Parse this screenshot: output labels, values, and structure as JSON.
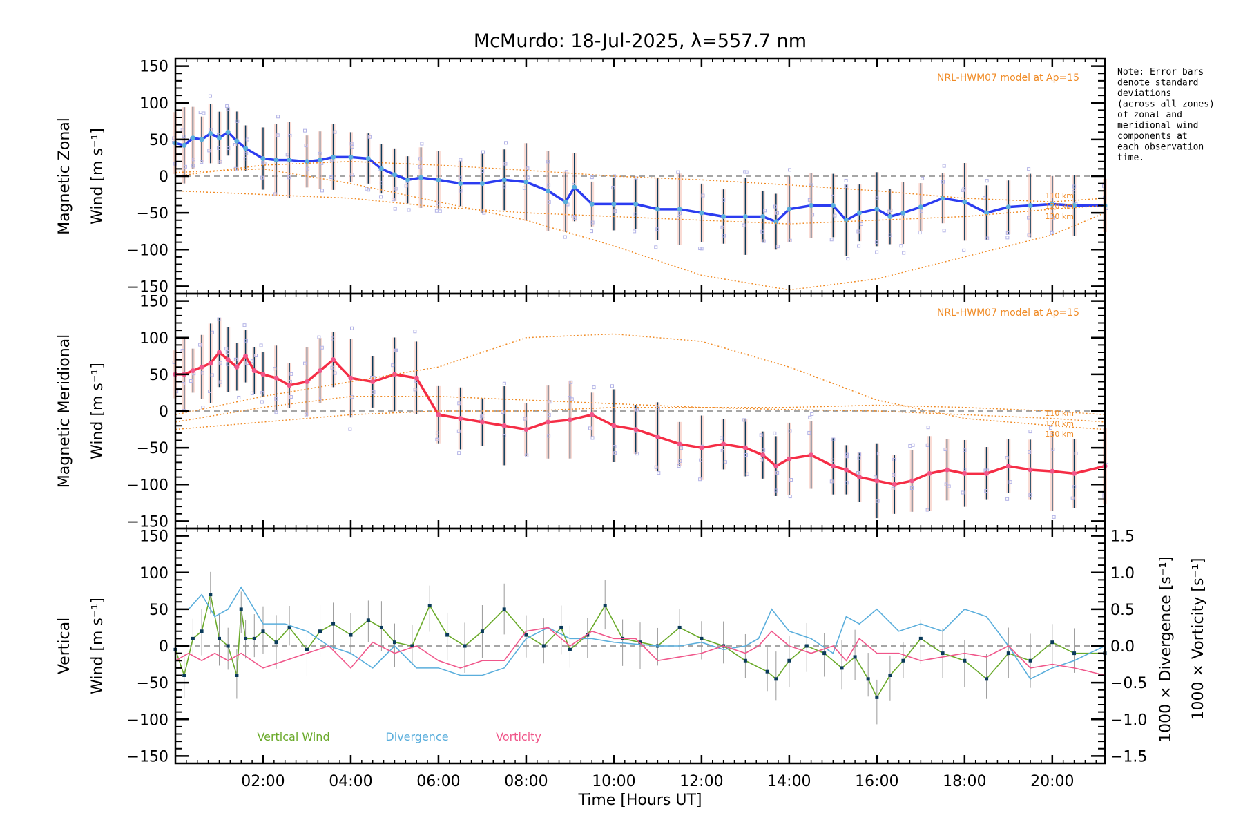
{
  "chart_data": {
    "type": "line",
    "title": "McMurdo: 18-Jul-2025, λ=557.7 nm",
    "xlabel": "Time [Hours UT]",
    "x_ticks": [
      "02:00",
      "04:00",
      "06:00",
      "08:00",
      "10:00",
      "12:00",
      "14:00",
      "16:00",
      "18:00",
      "20:00"
    ],
    "x_tick_hours": [
      2,
      4,
      6,
      8,
      10,
      12,
      14,
      16,
      18,
      20
    ],
    "xlim_hours": [
      0,
      21.2
    ],
    "note": [
      "Note: Error bars",
      "denote standard",
      "deviations",
      "(across all zones)",
      "of zonal and",
      "meridional wind",
      "components at",
      "each observation",
      "time."
    ],
    "panels": [
      {
        "name": "zonal",
        "ylabel_line1": "Magnetic Zonal",
        "ylabel_line2": "Wind [m s⁻¹]",
        "ylim": [
          -160,
          160
        ],
        "y_ticks": [
          150,
          100,
          50,
          0,
          -50,
          -100,
          -150
        ],
        "model_label": "NRL-HWM07 model at Ap=15",
        "altitude_labels": [
          "110 km",
          "120 km",
          "130 km"
        ],
        "series": [
          {
            "name": "Zonal wind (mean)",
            "color": "#2b3cf0",
            "x": [
              0.0,
              0.2,
              0.4,
              0.6,
              0.8,
              1.0,
              1.2,
              1.4,
              1.6,
              2.0,
              2.3,
              2.6,
              3.0,
              3.3,
              3.6,
              4.0,
              4.4,
              4.7,
              5.0,
              5.3,
              5.6,
              6.0,
              6.5,
              7.0,
              7.5,
              8.0,
              8.5,
              8.9,
              9.1,
              9.5,
              10.0,
              10.5,
              11.0,
              11.5,
              12.0,
              12.5,
              13.0,
              13.4,
              13.7,
              14.0,
              14.5,
              15.0,
              15.3,
              15.6,
              16.0,
              16.3,
              16.6,
              17.0,
              17.5,
              18.0,
              18.5,
              19.0,
              19.5,
              20.0,
              20.5,
              21.2
            ],
            "y": [
              45,
              42,
              52,
              50,
              58,
              52,
              60,
              48,
              38,
              24,
              22,
              22,
              20,
              22,
              26,
              26,
              24,
              10,
              2,
              -5,
              -2,
              -5,
              -10,
              -10,
              -5,
              -8,
              -20,
              -35,
              -15,
              -38,
              -38,
              -38,
              -45,
              -45,
              -50,
              -55,
              -55,
              -55,
              -62,
              -45,
              -40,
              -40,
              -60,
              -50,
              -45,
              -55,
              -50,
              -42,
              -30,
              -35,
              -50,
              -42,
              -40,
              -38,
              -40,
              -40
            ]
          },
          {
            "name": "HWM07 110 km",
            "color": "#f08a24",
            "style": "dotted",
            "x": [
              0,
              2,
              4,
              6,
              8,
              10,
              12,
              14,
              16,
              18,
              20,
              21.2
            ],
            "y": [
              0,
              15,
              20,
              15,
              8,
              0,
              -5,
              -12,
              -20,
              -30,
              -35,
              -30
            ]
          },
          {
            "name": "HWM07 120 km",
            "color": "#f08a24",
            "style": "dotted",
            "x": [
              0,
              2,
              4,
              6,
              8,
              10,
              12,
              14,
              16,
              18,
              20,
              21.2
            ],
            "y": [
              -20,
              -25,
              -30,
              -42,
              -50,
              -55,
              -60,
              -65,
              -60,
              -55,
              -45,
              -40
            ]
          },
          {
            "name": "HWM07 130 km",
            "color": "#f08a24",
            "style": "dotted",
            "x": [
              0,
              2,
              4,
              6,
              8,
              10,
              12,
              14,
              16,
              18,
              20,
              21.2
            ],
            "y": [
              5,
              10,
              -10,
              -35,
              -60,
              -95,
              -135,
              -155,
              -140,
              -110,
              -80,
              -50
            ]
          }
        ]
      },
      {
        "name": "meridional",
        "ylabel_line1": "Magnetic Meridional",
        "ylabel_line2": "Wind [m s⁻¹]",
        "ylim": [
          -160,
          160
        ],
        "y_ticks": [
          150,
          100,
          50,
          0,
          -50,
          -100,
          -150
        ],
        "model_label": "NRL-HWM07 model at Ap=15",
        "altitude_labels": [
          "110 km",
          "120 km",
          "130 km"
        ],
        "series": [
          {
            "name": "Meridional wind (mean)",
            "color": "#f52d45",
            "x": [
              0.0,
              0.2,
              0.4,
              0.6,
              0.8,
              1.0,
              1.2,
              1.4,
              1.6,
              1.8,
              2.0,
              2.3,
              2.6,
              3.0,
              3.3,
              3.6,
              4.0,
              4.5,
              5.0,
              5.5,
              6.0,
              6.5,
              7.0,
              7.5,
              8.0,
              8.5,
              9.0,
              9.5,
              10.0,
              10.5,
              11.0,
              11.5,
              12.0,
              12.5,
              13.0,
              13.4,
              13.7,
              14.0,
              14.5,
              15.0,
              15.3,
              15.6,
              16.0,
              16.4,
              16.8,
              17.2,
              17.6,
              18.0,
              18.5,
              19.0,
              19.5,
              20.0,
              20.5,
              21.2
            ],
            "y": [
              50,
              50,
              55,
              60,
              65,
              80,
              70,
              60,
              75,
              55,
              50,
              45,
              35,
              40,
              55,
              70,
              45,
              40,
              50,
              45,
              -5,
              -10,
              -15,
              -20,
              -25,
              -15,
              -12,
              -5,
              -20,
              -25,
              -35,
              -45,
              -50,
              -45,
              -50,
              -60,
              -75,
              -65,
              -60,
              -75,
              -80,
              -90,
              -95,
              -100,
              -95,
              -85,
              -80,
              -85,
              -85,
              -75,
              -80,
              -82,
              -85,
              -75
            ]
          },
          {
            "name": "HWM07 110 km",
            "color": "#f08a24",
            "style": "dotted",
            "x": [
              0,
              2,
              4,
              6,
              8,
              10,
              12,
              14,
              16,
              18,
              20,
              21.2
            ],
            "y": [
              -5,
              20,
              40,
              60,
              100,
              105,
              95,
              60,
              15,
              -10,
              -20,
              -25
            ]
          },
          {
            "name": "HWM07 120 km",
            "color": "#f08a24",
            "style": "dotted",
            "x": [
              0,
              2,
              4,
              6,
              8,
              10,
              12,
              14,
              16,
              18,
              20,
              21.2
            ],
            "y": [
              -15,
              5,
              20,
              20,
              15,
              10,
              5,
              2,
              0,
              -5,
              -10,
              -15
            ]
          },
          {
            "name": "HWM07 130 km",
            "color": "#f08a24",
            "style": "dotted",
            "x": [
              0,
              2,
              4,
              6,
              8,
              10,
              12,
              14,
              16,
              18,
              20,
              21.2
            ],
            "y": [
              -25,
              -15,
              -5,
              0,
              0,
              5,
              5,
              5,
              8,
              5,
              0,
              -5
            ]
          }
        ]
      },
      {
        "name": "vertical",
        "ylabel_line1": "Vertical",
        "ylabel_line2": "Wind [m s⁻¹]",
        "ylabel_color": "#6aaa2a",
        "ylim": [
          -160,
          160
        ],
        "y_ticks": [
          150,
          100,
          50,
          0,
          -50,
          -100,
          -150
        ],
        "right_ylim": [
          -1.6,
          1.6
        ],
        "right_y_ticks": [
          "1.5",
          "1.0",
          "0.5",
          "0.0",
          "−0.5",
          "−1.0",
          "−1.5"
        ],
        "right_y_tick_values": [
          1.5,
          1.0,
          0.5,
          0.0,
          -0.5,
          -1.0,
          -1.5
        ],
        "right_ylabel_div": "1000 × Divergence [s⁻¹]",
        "right_ylabel_vor": "1000 × Vorticity [s⁻¹]",
        "legend": [
          {
            "label": "Vertical Wind",
            "color": "#6aaa2a"
          },
          {
            "label": "Divergence",
            "color": "#5aaedc"
          },
          {
            "label": "Vorticity",
            "color": "#f0568a"
          }
        ],
        "series": [
          {
            "name": "Vertical Wind",
            "color": "#6aaa2a",
            "axis": "left",
            "x": [
              0.0,
              0.2,
              0.4,
              0.6,
              0.8,
              1.0,
              1.2,
              1.4,
              1.5,
              1.6,
              1.8,
              2.0,
              2.3,
              2.6,
              3.0,
              3.3,
              3.6,
              4.0,
              4.4,
              4.7,
              5.0,
              5.4,
              5.8,
              6.2,
              6.6,
              7.0,
              7.5,
              8.0,
              8.4,
              8.8,
              9.0,
              9.4,
              9.8,
              10.2,
              10.6,
              11.0,
              11.5,
              12.0,
              12.5,
              13.0,
              13.5,
              13.7,
              14.0,
              14.4,
              14.8,
              15.2,
              15.5,
              15.8,
              16.0,
              16.3,
              16.6,
              17.0,
              17.5,
              18.0,
              18.5,
              19.0,
              19.5,
              20.0,
              20.5,
              21.2
            ],
            "y": [
              -5,
              -40,
              10,
              20,
              70,
              10,
              0,
              -40,
              50,
              10,
              10,
              20,
              5,
              25,
              -5,
              20,
              30,
              15,
              35,
              25,
              5,
              0,
              55,
              15,
              0,
              20,
              50,
              15,
              0,
              25,
              -5,
              15,
              55,
              10,
              5,
              0,
              25,
              10,
              0,
              -20,
              -35,
              -45,
              -20,
              0,
              -10,
              -30,
              -15,
              -45,
              -70,
              -40,
              -20,
              10,
              -10,
              -20,
              -45,
              -10,
              -20,
              5,
              -10,
              -10
            ]
          },
          {
            "name": "Divergence",
            "color": "#5aaedc",
            "axis": "right",
            "x": [
              0.0,
              0.3,
              0.6,
              0.9,
              1.2,
              1.5,
              2.0,
              2.5,
              3.0,
              3.5,
              4.0,
              4.5,
              5.0,
              5.5,
              6.0,
              6.5,
              7.0,
              7.5,
              8.0,
              8.5,
              9.0,
              9.5,
              10.0,
              11.0,
              11.5,
              12.0,
              12.5,
              13.0,
              13.3,
              13.6,
              14.0,
              14.5,
              15.0,
              15.3,
              15.6,
              16.0,
              16.5,
              17.0,
              17.5,
              18.0,
              18.5,
              19.0,
              19.5,
              20.0,
              20.5,
              21.2
            ],
            "y": [
              0.5,
              0.5,
              0.7,
              0.4,
              0.5,
              0.8,
              0.3,
              0.3,
              0.2,
              0.0,
              -0.1,
              -0.3,
              0.0,
              -0.3,
              -0.3,
              -0.4,
              -0.4,
              -0.3,
              0.1,
              0.25,
              0.1,
              0.1,
              0.05,
              0.0,
              0.0,
              0.05,
              -0.05,
              0.0,
              0.1,
              0.5,
              0.2,
              0.1,
              -0.1,
              0.4,
              0.3,
              0.5,
              0.2,
              0.3,
              0.2,
              0.5,
              0.4,
              0.0,
              -0.45,
              -0.3,
              -0.2,
              0.0
            ]
          },
          {
            "name": "Vorticity",
            "color": "#f0568a",
            "axis": "right",
            "x": [
              0.0,
              0.3,
              0.6,
              0.9,
              1.2,
              1.5,
              2.0,
              2.5,
              3.0,
              3.5,
              4.0,
              4.5,
              5.0,
              5.5,
              6.0,
              6.5,
              7.0,
              7.5,
              8.0,
              8.5,
              9.0,
              9.5,
              10.0,
              10.5,
              11.0,
              11.5,
              12.0,
              12.5,
              13.0,
              13.3,
              13.6,
              14.0,
              14.5,
              15.0,
              15.3,
              15.6,
              16.0,
              16.5,
              17.0,
              17.5,
              18.0,
              18.5,
              19.0,
              19.5,
              20.0,
              20.5,
              21.2
            ],
            "y": [
              -0.2,
              -0.1,
              -0.2,
              -0.1,
              -0.2,
              -0.1,
              -0.3,
              -0.2,
              -0.1,
              0.0,
              -0.3,
              0.05,
              -0.1,
              0.0,
              -0.2,
              -0.3,
              -0.2,
              -0.2,
              0.2,
              0.25,
              0.0,
              0.2,
              0.1,
              0.1,
              -0.2,
              -0.15,
              -0.1,
              0.0,
              -0.1,
              0.0,
              0.2,
              0.0,
              -0.1,
              0.0,
              -0.2,
              0.1,
              -0.1,
              -0.1,
              -0.2,
              -0.15,
              -0.1,
              -0.15,
              0.0,
              -0.3,
              -0.25,
              -0.3,
              -0.4
            ]
          }
        ]
      }
    ]
  }
}
